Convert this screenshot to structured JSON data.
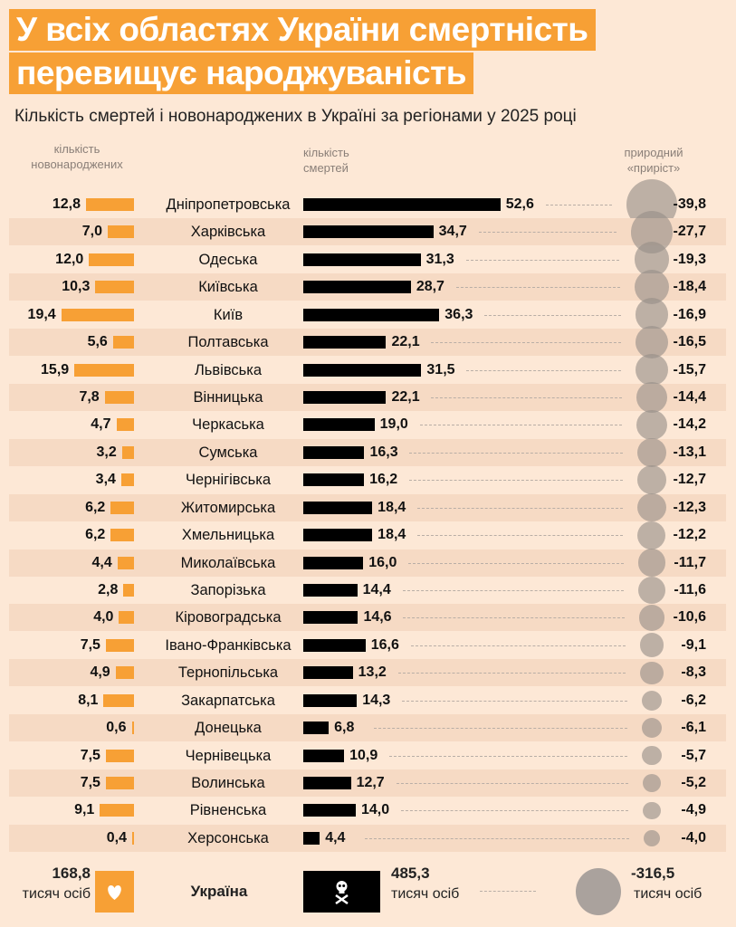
{
  "title_line1": "У всіх областях України смертність",
  "title_line2": "перевищує народжуваність",
  "subtitle": "Кількість смертей і новонароджених в Україні за регіонами у 2025 році",
  "colors": {
    "births": "#f7a035",
    "deaths": "#000000",
    "natural": "#968e88",
    "background": "#fde8d6"
  },
  "chart_data": {
    "type": "bar",
    "title": "У всіх областях України смертність перевищує народжуваність",
    "subtitle": "Кількість смертей і новонароджених в Україні за регіонами у 2025 році",
    "column_headers": {
      "births": "кількість новонароджених",
      "deaths": "кількість смертей",
      "natural": "природний «приріст»"
    },
    "categories": [
      "Дніпропетровська",
      "Харківська",
      "Одеська",
      "Київська",
      "Київ",
      "Полтавська",
      "Львівська",
      "Вінницька",
      "Черкаська",
      "Сумська",
      "Чернігівська",
      "Житомирська",
      "Хмельницька",
      "Миколаївська",
      "Запорізька",
      "Кіровоградська",
      "Івано-Франківська",
      "Тернопільська",
      "Закарпатська",
      "Донецька",
      "Чернівецька",
      "Волинська",
      "Рівненська",
      "Херсонська"
    ],
    "series": [
      {
        "name": "кількість новонароджених",
        "values": [
          "12,8",
          "7,0",
          "12,0",
          "10,3",
          "19,4",
          "5,6",
          "15,9",
          "7,8",
          "4,7",
          "3,2",
          "3,4",
          "6,2",
          "6,2",
          "4,4",
          "2,8",
          "4,0",
          "7,5",
          "4,9",
          "8,1",
          "0,6",
          "7,5",
          "7,5",
          "9,1",
          "0,4"
        ]
      },
      {
        "name": "кількість смертей",
        "values": [
          "52,6",
          "34,7",
          "31,3",
          "28,7",
          "36,3",
          "22,1",
          "31,5",
          "22,1",
          "19,0",
          "16,3",
          "16,2",
          "18,4",
          "18,4",
          "16,0",
          "14,4",
          "14,6",
          "16,6",
          "13,2",
          "14,3",
          "6,8",
          "10,9",
          "12,7",
          "14,0",
          "4,4"
        ]
      },
      {
        "name": "природний «приріст»",
        "values": [
          "-39,8",
          "-27,7",
          "-19,3",
          "-18,4",
          "-16,9",
          "-16,5",
          "-15,7",
          "-14,4",
          "-14,2",
          "-13,1",
          "-12,7",
          "-12,3",
          "-12,2",
          "-11,7",
          "-11,6",
          "-10,6",
          "-9,1",
          "-8,3",
          "-6,2",
          "-6,1",
          "-5,7",
          "-5,2",
          "-4,9",
          "-4,0"
        ]
      }
    ],
    "unit": "тисяч осіб",
    "total": {
      "label": "Україна",
      "births": "168,8",
      "deaths": "485,3",
      "natural": "-316,5",
      "unit": "тисяч осіб"
    }
  },
  "icons": {
    "births": "heart-icon",
    "deaths": "skull-crossbones-icon"
  }
}
